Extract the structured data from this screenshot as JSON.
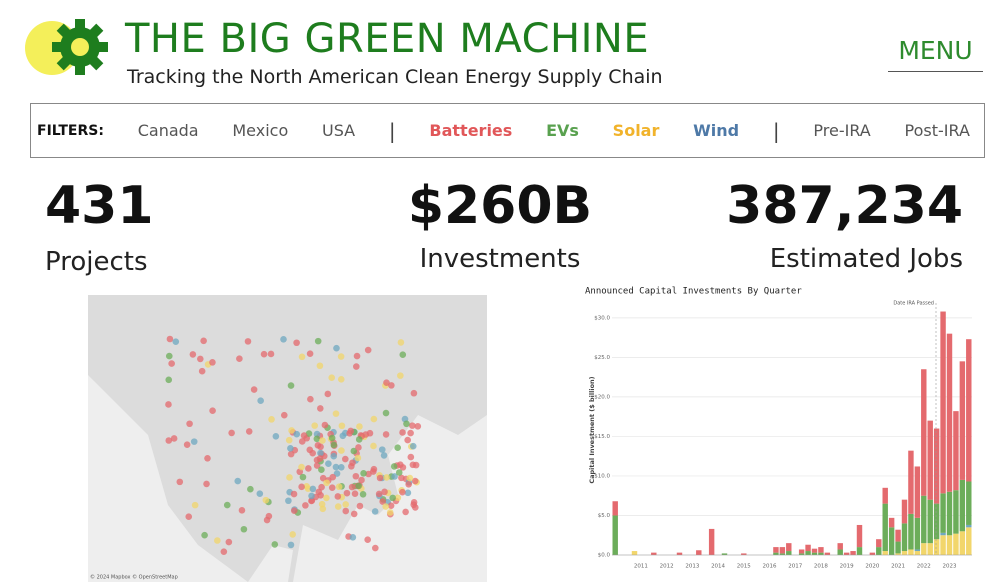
{
  "header": {
    "title": "THE BIG GREEN MACHINE",
    "subtitle": "Tracking the North American Clean Energy Supply Chain",
    "menu": "MENU"
  },
  "filters": {
    "label": "FILTERS:",
    "separator": "|",
    "groups": [
      [
        {
          "label": "Canada",
          "color": "#555555"
        },
        {
          "label": "Mexico",
          "color": "#555555"
        },
        {
          "label": "USA",
          "color": "#555555"
        }
      ],
      [
        {
          "label": "Batteries",
          "color": "#e15759"
        },
        {
          "label": "EVs",
          "color": "#59a14f"
        },
        {
          "label": "Solar",
          "color": "#f1b32b"
        },
        {
          "label": "Wind",
          "color": "#4e79a7"
        }
      ],
      [
        {
          "label": "Pre-IRA",
          "color": "#555555"
        },
        {
          "label": "Post-IRA",
          "color": "#555555"
        }
      ]
    ]
  },
  "kpis": [
    {
      "value": "431",
      "label": "Projects"
    },
    {
      "value": "$260B",
      "label": "Investments"
    },
    {
      "value": "387,234",
      "label": "Estimated Jobs"
    }
  ],
  "map": {
    "attribution": "© 2024 Mapbox © OpenStreetMap"
  },
  "chart_data": {
    "type": "bar",
    "stacked": true,
    "title": "Announced Capital Investments By Quarter",
    "y_label": "Capital Investment ($ billion)",
    "annotation": "Date IRA Passed",
    "grid": true,
    "categories": [
      null,
      null,
      null,
      null,
      "2011",
      null,
      null,
      null,
      "2012",
      null,
      null,
      null,
      "2013",
      null,
      null,
      null,
      "2014",
      null,
      null,
      null,
      "2015",
      null,
      null,
      null,
      "2016",
      null,
      null,
      null,
      "2017",
      null,
      null,
      null,
      "2018",
      null,
      null,
      null,
      "2019",
      null,
      null,
      null,
      "2020",
      null,
      null,
      null,
      "2021",
      null,
      null,
      null,
      "2022",
      null,
      null,
      null,
      "2023",
      null,
      null,
      null
    ],
    "series": [
      {
        "name": "Solar",
        "color": "#f2d66b",
        "values": [
          0,
          0,
          0,
          0.5,
          0,
          0,
          0,
          0,
          0,
          0,
          0,
          0,
          0,
          0,
          0,
          0,
          0,
          0,
          0,
          0,
          0,
          0,
          0,
          0,
          0,
          0,
          0,
          0,
          0,
          0,
          0,
          0,
          0,
          0,
          0,
          0,
          0,
          0,
          0,
          0,
          0,
          0,
          0.5,
          0,
          0.2,
          0.5,
          0.7,
          0.5,
          1.5,
          1.5,
          2.0,
          2.5,
          2.5,
          2.7,
          3.0,
          3.5
        ]
      },
      {
        "name": "Wind",
        "color": "#6fa8c0",
        "values": [
          0,
          0,
          0,
          0,
          0,
          0,
          0,
          0,
          0,
          0,
          0,
          0,
          0,
          0,
          0,
          0,
          0,
          0,
          0,
          0,
          0,
          0,
          0,
          0,
          0,
          0,
          0,
          0,
          0,
          0,
          0,
          0,
          0,
          0,
          0,
          0,
          0,
          0,
          0,
          0,
          0,
          0,
          0,
          0,
          0,
          0,
          0,
          0.2,
          0,
          0,
          0,
          0.3,
          0,
          0,
          0,
          0.3
        ]
      },
      {
        "name": "EVs",
        "color": "#6cad5a",
        "values": [
          5.0,
          0,
          0,
          0,
          0,
          0,
          0,
          0,
          0,
          0,
          0,
          0,
          0,
          0,
          0,
          0,
          0,
          0.2,
          0,
          0,
          0,
          0,
          0,
          0,
          0,
          0.3,
          0.2,
          0.5,
          0,
          0.2,
          0.5,
          0.3,
          0.3,
          0,
          0,
          0.7,
          0,
          0,
          1.0,
          0,
          0,
          1.0,
          6.0,
          3.5,
          1.5,
          3.5,
          4.5,
          4.0,
          6.0,
          5.5,
          4.5,
          5.0,
          5.5,
          5.5,
          6.5,
          5.5
        ]
      },
      {
        "name": "Batteries",
        "color": "#e46a6e",
        "values": [
          1.8,
          0,
          0,
          0,
          0,
          0,
          0.3,
          0,
          0,
          0,
          0.3,
          0,
          0,
          0.6,
          0,
          3.3,
          0,
          0,
          0,
          0,
          0.2,
          0,
          0,
          0,
          0,
          0.7,
          0.8,
          1.0,
          0,
          0.5,
          0.8,
          0.5,
          0.7,
          0.3,
          0,
          0.8,
          0.3,
          0.5,
          2.8,
          0,
          0.3,
          1.0,
          2.0,
          1.2,
          1.5,
          3.0,
          8.0,
          6.5,
          16.0,
          10.0,
          9.5,
          23.0,
          20.0,
          10.0,
          15.0,
          18.0
        ]
      }
    ],
    "ylim": [
      0,
      31.5
    ],
    "yticks": [
      {
        "value": 0,
        "label": "$0.0"
      },
      {
        "value": 5,
        "label": "$5.0"
      },
      {
        "value": 10,
        "label": "$10.0"
      },
      {
        "value": 15,
        "label": "$15.0"
      },
      {
        "value": 20,
        "label": "$20.0"
      },
      {
        "value": 25,
        "label": "$25.0"
      },
      {
        "value": 30,
        "label": "$30.0"
      }
    ]
  }
}
